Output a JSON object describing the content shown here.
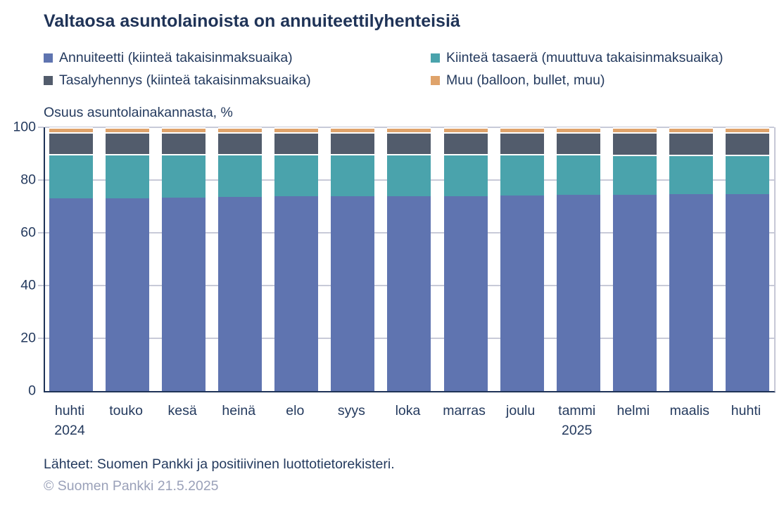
{
  "title": "Valtaosa asuntolainoista on annuiteettilyhenteisiä",
  "footer": {
    "sources": "Lähteet: Suomen Pankki ja positiivinen luottotietorekisteri.",
    "copyright": "© Suomen Pankki 21.5.2025"
  },
  "colors": {
    "title_text": "#1f3357",
    "body_text": "#243a5e",
    "axis_line": "#1f3357",
    "gridline": "#c8cad8",
    "copyright_text": "#9aa1b9",
    "annuiteetti": "#5f74b0",
    "kiintea_tasaera": "#4aa3ac",
    "tasalyhennys": "#525c6c",
    "muu": "#dfa36b"
  },
  "chart_data": {
    "type": "bar",
    "stacked": true,
    "title": "Valtaosa asuntolainoista on annuiteettilyhenteisiä",
    "ylabel": "Osuus asuntolainakannasta, %",
    "xlabel": "",
    "ylim": [
      0,
      100
    ],
    "yticks": [
      0,
      20,
      40,
      60,
      80,
      100
    ],
    "grid": true,
    "legend_position": "top",
    "categories": [
      "huhti",
      "touko",
      "kesä",
      "heinä",
      "elo",
      "syys",
      "loka",
      "marras",
      "joulu",
      "tammi",
      "helmi",
      "maalis",
      "huhti"
    ],
    "year_labels": [
      {
        "index": 0,
        "label": "2024"
      },
      {
        "index": 9,
        "label": "2025"
      }
    ],
    "series": [
      {
        "name": "Annuiteetti (kiinteä takaisinmaksuaika)",
        "color": "#5f74b0",
        "values": [
          73.0,
          73.2,
          73.3,
          73.6,
          73.8,
          73.8,
          73.9,
          74.0,
          74.2,
          74.3,
          74.5,
          74.6,
          74.7
        ]
      },
      {
        "name": "Kiinteä tasaerä (muuttuva takaisinmaksuaika)",
        "color": "#4aa3ac",
        "values": [
          16.9,
          16.7,
          16.6,
          16.3,
          16.1,
          16.1,
          16.0,
          15.9,
          15.6,
          15.5,
          15.2,
          15.1,
          15.0
        ]
      },
      {
        "name": "Tasalyhennys (kiinteä takaisinmaksuaika)",
        "color": "#525c6c",
        "values": [
          8.3,
          8.3,
          8.3,
          8.3,
          8.3,
          8.3,
          8.3,
          8.3,
          8.4,
          8.4,
          8.5,
          8.5,
          8.5
        ]
      },
      {
        "name": "Muu (balloon, bullet, muu)",
        "color": "#dfa36b",
        "values": [
          1.8,
          1.8,
          1.8,
          1.8,
          1.8,
          1.8,
          1.8,
          1.8,
          1.8,
          1.8,
          1.8,
          1.8,
          1.8
        ]
      }
    ]
  }
}
